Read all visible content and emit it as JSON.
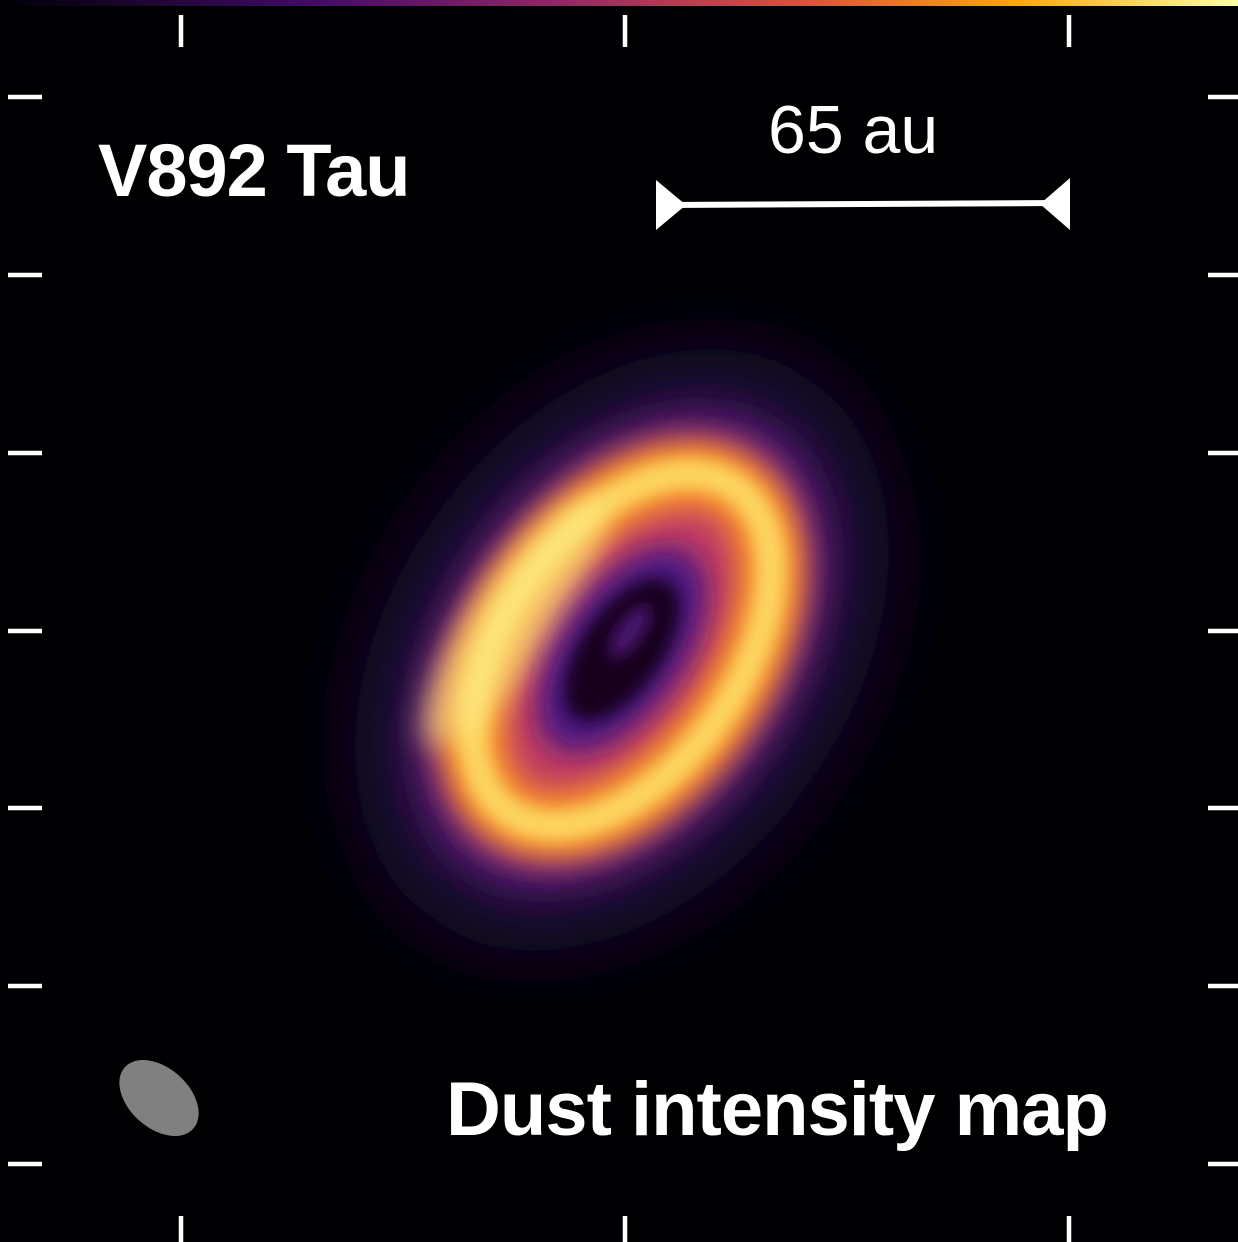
{
  "target_name": "V892 Tau",
  "scale_bar": {
    "label": "65 au"
  },
  "caption": "Dust intensity map",
  "colors": {
    "background": "#000003",
    "colormap": "inferno",
    "ring_bright": "#fcf08c",
    "ring_orange": "#fb9b2c",
    "ring_purple": "#5a1a86",
    "beam": "#808080",
    "text": "#ffffff"
  }
}
